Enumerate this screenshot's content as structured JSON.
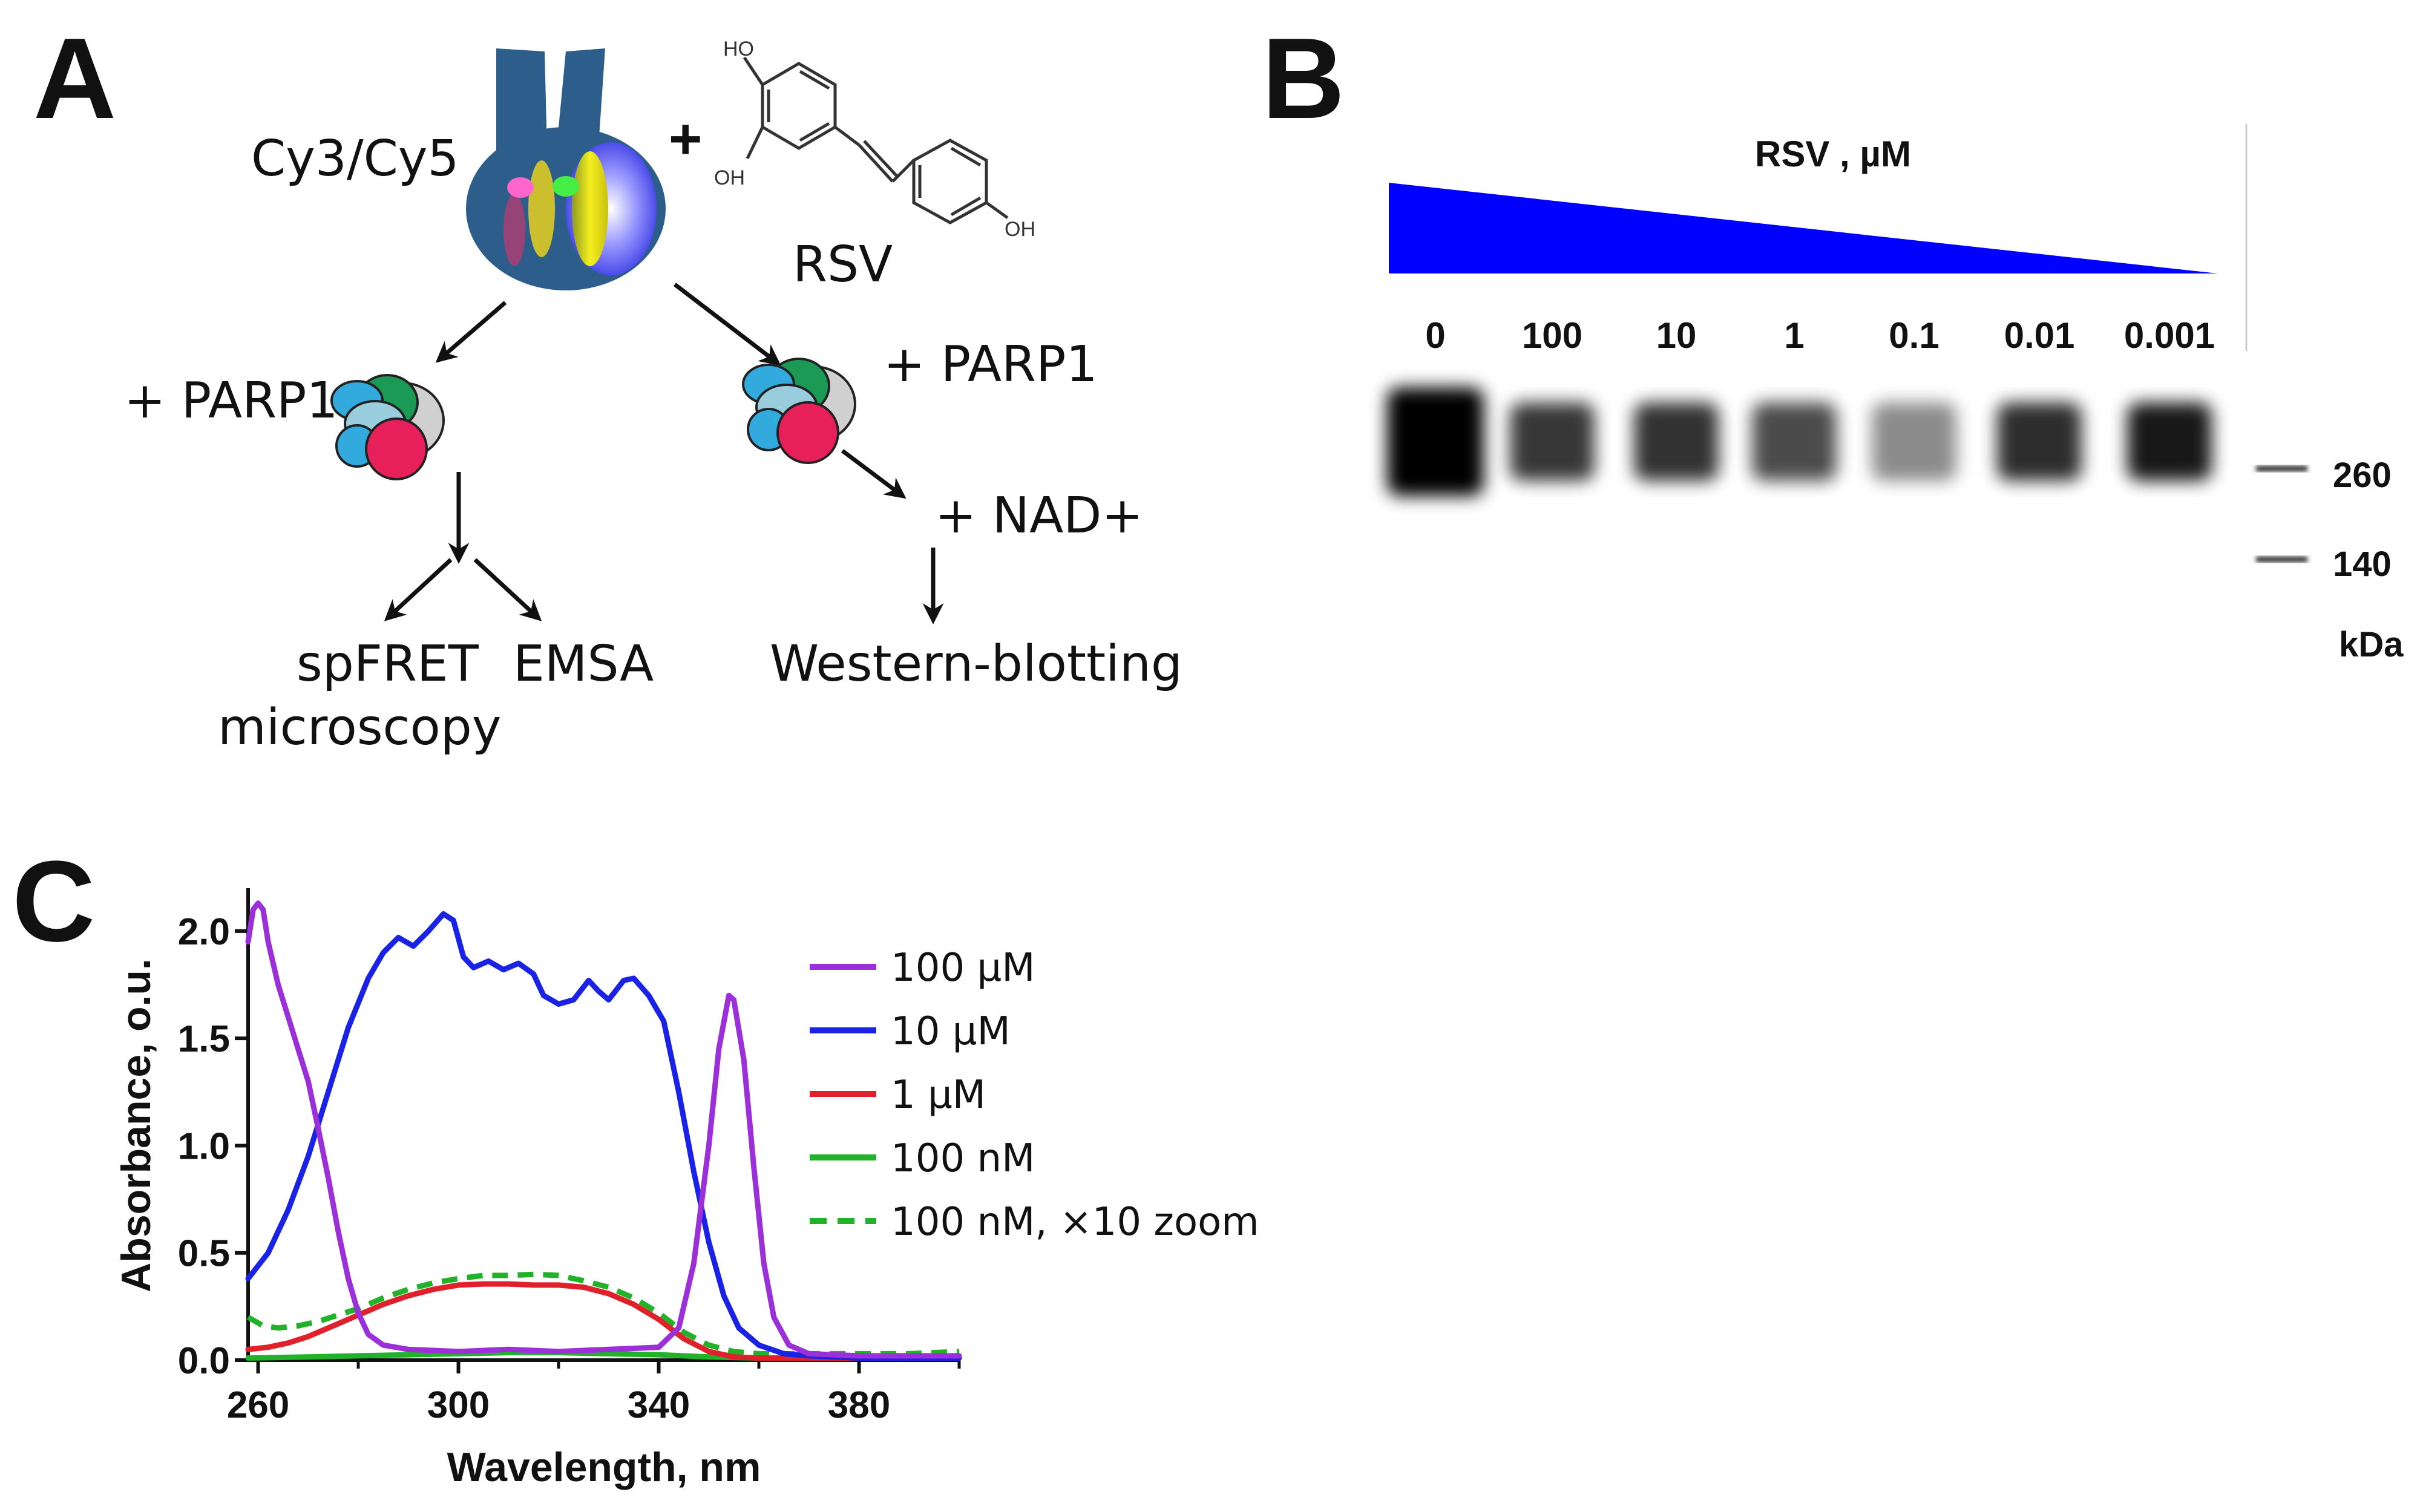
{
  "panels": {
    "a": {
      "letter": "A",
      "cy_label": "Cy3/Cy5",
      "plus_sign": "+",
      "rsv_label": "RSV",
      "parp_left": "+ PARP1",
      "parp_right": "+ PARP1",
      "nad": "+ NAD+",
      "spfret_line1": "spFRET",
      "spfret_line2": "microscopy",
      "emsa": "EMSA",
      "western": "Western-blotting",
      "mol_oh_top": "HO",
      "mol_oh_left": "OH",
      "mol_oh_right": "OH"
    },
    "b": {
      "letter": "B",
      "title": "RSV , µM",
      "gradient_color": "#0000ff",
      "lanes": [
        "0",
        "100",
        "10",
        "1",
        "0.1",
        "0.01",
        "0.001"
      ],
      "lane_band_intensity": [
        1.0,
        0.78,
        0.8,
        0.7,
        0.45,
        0.82,
        0.9
      ],
      "markers": [
        "260",
        "140"
      ],
      "unit": "kDa"
    },
    "c": {
      "letter": "C"
    }
  },
  "chart_data": {
    "type": "line",
    "title": "",
    "xlabel": "Wavelength, nm",
    "ylabel": "Absorbance, o.u.",
    "xlim": [
      258,
      400
    ],
    "ylim": [
      0,
      2.2
    ],
    "xticks": [
      260,
      300,
      340,
      380
    ],
    "xtick_labels": [
      "260",
      "300",
      "340",
      "380"
    ],
    "yticks": [
      0,
      0.5,
      1.0,
      1.5,
      2.0
    ],
    "ytick_labels": [
      "0.0",
      "0.5",
      "1.0",
      "1.5",
      "2.0"
    ],
    "legend_position": "right",
    "series": [
      {
        "name": "100 μM",
        "color": "#9b30d9",
        "dash": false,
        "points": [
          [
            258,
            1.95
          ],
          [
            259,
            2.1
          ],
          [
            260,
            2.13
          ],
          [
            261,
            2.1
          ],
          [
            262,
            1.95
          ],
          [
            264,
            1.75
          ],
          [
            266,
            1.6
          ],
          [
            268,
            1.45
          ],
          [
            270,
            1.3
          ],
          [
            272,
            1.08
          ],
          [
            274,
            0.85
          ],
          [
            276,
            0.6
          ],
          [
            278,
            0.38
          ],
          [
            280,
            0.22
          ],
          [
            282,
            0.12
          ],
          [
            285,
            0.07
          ],
          [
            290,
            0.05
          ],
          [
            300,
            0.04
          ],
          [
            310,
            0.05
          ],
          [
            320,
            0.04
          ],
          [
            330,
            0.05
          ],
          [
            340,
            0.06
          ],
          [
            344,
            0.15
          ],
          [
            347,
            0.45
          ],
          [
            350,
            1.0
          ],
          [
            352,
            1.45
          ],
          [
            354,
            1.7
          ],
          [
            355,
            1.68
          ],
          [
            357,
            1.4
          ],
          [
            359,
            0.9
          ],
          [
            361,
            0.45
          ],
          [
            363,
            0.2
          ],
          [
            366,
            0.07
          ],
          [
            370,
            0.03
          ],
          [
            380,
            0.02
          ],
          [
            390,
            0.02
          ],
          [
            400,
            0.02
          ]
        ]
      },
      {
        "name": "10 μM",
        "color": "#1a22e6",
        "dash": false,
        "points": [
          [
            258,
            0.38
          ],
          [
            262,
            0.5
          ],
          [
            266,
            0.7
          ],
          [
            270,
            0.95
          ],
          [
            274,
            1.25
          ],
          [
            278,
            1.55
          ],
          [
            282,
            1.78
          ],
          [
            285,
            1.9
          ],
          [
            288,
            1.97
          ],
          [
            291,
            1.93
          ],
          [
            294,
            2.0
          ],
          [
            297,
            2.08
          ],
          [
            299,
            2.05
          ],
          [
            301,
            1.88
          ],
          [
            303,
            1.83
          ],
          [
            306,
            1.86
          ],
          [
            309,
            1.82
          ],
          [
            312,
            1.85
          ],
          [
            315,
            1.8
          ],
          [
            317,
            1.7
          ],
          [
            320,
            1.66
          ],
          [
            323,
            1.68
          ],
          [
            326,
            1.77
          ],
          [
            328,
            1.72
          ],
          [
            330,
            1.68
          ],
          [
            333,
            1.77
          ],
          [
            335,
            1.78
          ],
          [
            338,
            1.7
          ],
          [
            341,
            1.58
          ],
          [
            344,
            1.25
          ],
          [
            347,
            0.88
          ],
          [
            350,
            0.55
          ],
          [
            353,
            0.3
          ],
          [
            356,
            0.15
          ],
          [
            360,
            0.07
          ],
          [
            365,
            0.03
          ],
          [
            370,
            0.02
          ],
          [
            380,
            0.01
          ],
          [
            390,
            0.01
          ],
          [
            400,
            0.01
          ]
        ]
      },
      {
        "name": "1 μM",
        "color": "#e0202a",
        "dash": false,
        "points": [
          [
            258,
            0.05
          ],
          [
            262,
            0.06
          ],
          [
            266,
            0.08
          ],
          [
            270,
            0.11
          ],
          [
            275,
            0.16
          ],
          [
            280,
            0.21
          ],
          [
            285,
            0.26
          ],
          [
            290,
            0.3
          ],
          [
            295,
            0.33
          ],
          [
            300,
            0.35
          ],
          [
            305,
            0.355
          ],
          [
            310,
            0.355
          ],
          [
            315,
            0.35
          ],
          [
            320,
            0.35
          ],
          [
            325,
            0.34
          ],
          [
            330,
            0.31
          ],
          [
            335,
            0.26
          ],
          [
            340,
            0.19
          ],
          [
            345,
            0.1
          ],
          [
            350,
            0.04
          ],
          [
            355,
            0.015
          ],
          [
            360,
            0.01
          ],
          [
            370,
            0.01
          ],
          [
            380,
            0.01
          ],
          [
            400,
            0.01
          ]
        ]
      },
      {
        "name": "100 nM",
        "color": "#22b22a",
        "dash": false,
        "points": [
          [
            258,
            0.01
          ],
          [
            270,
            0.015
          ],
          [
            280,
            0.02
          ],
          [
            290,
            0.025
          ],
          [
            300,
            0.03
          ],
          [
            310,
            0.035
          ],
          [
            320,
            0.035
          ],
          [
            330,
            0.03
          ],
          [
            340,
            0.025
          ],
          [
            350,
            0.015
          ],
          [
            360,
            0.01
          ],
          [
            380,
            0.01
          ],
          [
            400,
            0.01
          ]
        ]
      },
      {
        "name": "100 nM, ×10 zoom",
        "color": "#22b22a",
        "dash": true,
        "points": [
          [
            258,
            0.2
          ],
          [
            261,
            0.16
          ],
          [
            264,
            0.15
          ],
          [
            268,
            0.16
          ],
          [
            272,
            0.18
          ],
          [
            276,
            0.21
          ],
          [
            280,
            0.24
          ],
          [
            285,
            0.29
          ],
          [
            290,
            0.33
          ],
          [
            295,
            0.36
          ],
          [
            300,
            0.38
          ],
          [
            305,
            0.395
          ],
          [
            310,
            0.395
          ],
          [
            315,
            0.4
          ],
          [
            320,
            0.395
          ],
          [
            325,
            0.37
          ],
          [
            330,
            0.34
          ],
          [
            335,
            0.29
          ],
          [
            340,
            0.22
          ],
          [
            345,
            0.13
          ],
          [
            350,
            0.07
          ],
          [
            355,
            0.04
          ],
          [
            360,
            0.03
          ],
          [
            370,
            0.03
          ],
          [
            380,
            0.03
          ],
          [
            390,
            0.03
          ],
          [
            400,
            0.04
          ]
        ]
      }
    ]
  }
}
